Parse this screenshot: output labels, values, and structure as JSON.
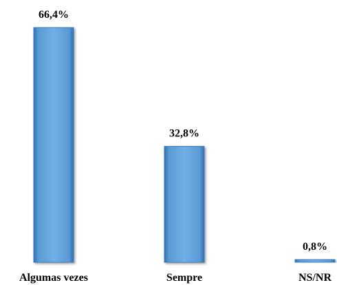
{
  "chart_data": {
    "type": "bar",
    "categories": [
      "Algumas vezes",
      "Sempre",
      "NS/NR"
    ],
    "values": [
      66.4,
      32.8,
      0.8
    ],
    "value_labels": [
      "66,4%",
      "32,8%",
      "0,8%"
    ],
    "ylim": [
      0,
      66.4
    ],
    "grid": false,
    "bar_color": "#5B9BD5"
  }
}
